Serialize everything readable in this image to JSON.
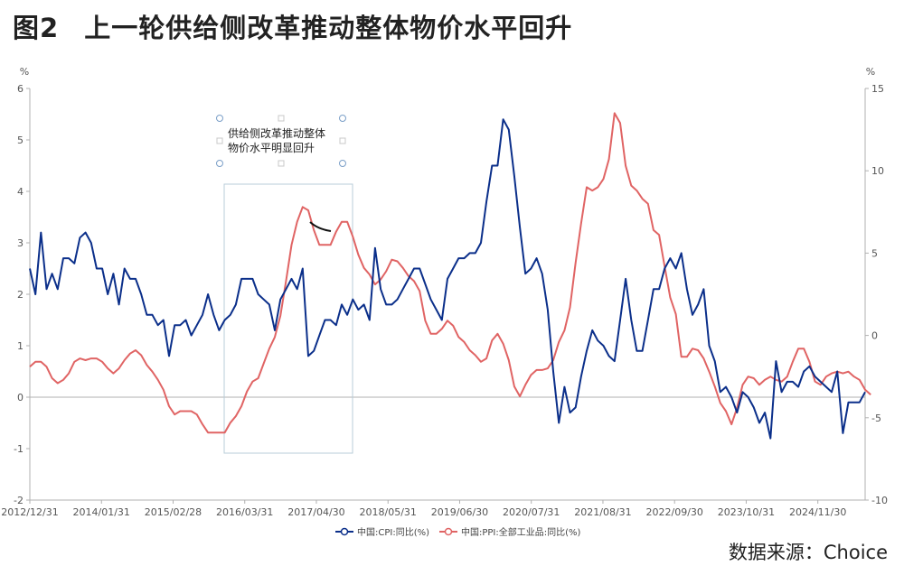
{
  "header": {
    "figure_no": "图2",
    "title": "上一轮供给侧改革推动整体物价水平回升"
  },
  "footer": {
    "source": "数据来源：Choice"
  },
  "chart_data": {
    "type": "line",
    "left_axis": {
      "unit": "%",
      "range": [
        -2,
        6
      ],
      "ticks": [
        -2,
        -1,
        0,
        1,
        2,
        3,
        4,
        5,
        6
      ]
    },
    "right_axis": {
      "unit": "%",
      "range": [
        -10,
        15
      ],
      "ticks": [
        -10,
        -5,
        0,
        5,
        10,
        15
      ]
    },
    "x_tick_labels": [
      "2012/12/31",
      "2014/01/31",
      "2015/02/28",
      "2016/03/31",
      "2017/04/30",
      "2018/05/31",
      "2019/06/30",
      "2020/07/31",
      "2021/08/31",
      "2022/09/30",
      "2023/10/31",
      "2024/11/30"
    ],
    "series": [
      {
        "name": "中国:CPI:同比(%)",
        "axis": "left",
        "color": "#0b2f8a",
        "values": [
          2.5,
          2.0,
          3.2,
          2.1,
          2.4,
          2.1,
          2.7,
          2.7,
          2.6,
          3.1,
          3.2,
          3.0,
          2.5,
          2.5,
          2.0,
          2.4,
          1.8,
          2.5,
          2.3,
          2.3,
          2.0,
          1.6,
          1.6,
          1.4,
          1.5,
          0.8,
          1.4,
          1.4,
          1.5,
          1.2,
          1.4,
          1.6,
          2.0,
          1.6,
          1.3,
          1.5,
          1.6,
          1.8,
          2.3,
          2.3,
          2.3,
          2.0,
          1.9,
          1.8,
          1.3,
          1.9,
          2.1,
          2.3,
          2.1,
          2.5,
          0.8,
          0.9,
          1.2,
          1.5,
          1.5,
          1.4,
          1.8,
          1.6,
          1.9,
          1.7,
          1.8,
          1.5,
          2.9,
          2.1,
          1.8,
          1.8,
          1.9,
          2.1,
          2.3,
          2.5,
          2.5,
          2.2,
          1.9,
          1.7,
          1.5,
          2.3,
          2.5,
          2.7,
          2.7,
          2.8,
          2.8,
          3.0,
          3.8,
          4.5,
          4.5,
          5.4,
          5.2,
          4.3,
          3.3,
          2.4,
          2.5,
          2.7,
          2.4,
          1.7,
          0.5,
          -0.5,
          0.2,
          -0.3,
          -0.2,
          0.4,
          0.9,
          1.3,
          1.1,
          1.0,
          0.8,
          0.7,
          1.5,
          2.3,
          1.5,
          0.9,
          0.9,
          1.5,
          2.1,
          2.1,
          2.5,
          2.7,
          2.5,
          2.8,
          2.1,
          1.6,
          1.8,
          2.1,
          1.0,
          0.7,
          0.1,
          0.2,
          0.0,
          -0.3,
          0.1,
          0.0,
          -0.2,
          -0.5,
          -0.3,
          -0.8,
          0.7,
          0.1,
          0.3,
          0.3,
          0.2,
          0.5,
          0.6,
          0.4,
          0.3,
          0.2,
          0.1,
          0.5,
          -0.7,
          -0.1,
          -0.1,
          -0.1,
          0.1
        ]
      },
      {
        "name": "中国:PPI:全部工业品:同比(%)",
        "axis": "right",
        "color": "#e06464",
        "values": [
          -1.9,
          -1.6,
          -1.6,
          -1.9,
          -2.6,
          -2.9,
          -2.7,
          -2.3,
          -1.6,
          -1.4,
          -1.5,
          -1.4,
          -1.4,
          -1.6,
          -2.0,
          -2.3,
          -2.0,
          -1.5,
          -1.1,
          -0.9,
          -1.2,
          -1.8,
          -2.2,
          -2.7,
          -3.3,
          -4.3,
          -4.8,
          -4.6,
          -4.6,
          -4.6,
          -4.8,
          -5.4,
          -5.9,
          -5.9,
          -5.9,
          -5.9,
          -5.3,
          -4.9,
          -4.3,
          -3.4,
          -2.8,
          -2.6,
          -1.7,
          -0.8,
          -0.1,
          1.2,
          3.3,
          5.5,
          6.9,
          7.8,
          7.6,
          6.4,
          5.5,
          5.5,
          5.5,
          6.3,
          6.9,
          6.9,
          6.0,
          4.9,
          4.1,
          3.7,
          3.1,
          3.4,
          3.9,
          4.6,
          4.5,
          4.1,
          3.6,
          3.3,
          2.7,
          0.9,
          0.1,
          0.1,
          0.4,
          0.9,
          0.6,
          -0.1,
          -0.4,
          -0.9,
          -1.2,
          -1.6,
          -1.4,
          -0.3,
          0.1,
          -0.5,
          -1.5,
          -3.1,
          -3.7,
          -3.0,
          -2.4,
          -2.1,
          -2.1,
          -2.0,
          -1.5,
          -0.4,
          0.3,
          1.7,
          4.4,
          6.8,
          9.0,
          8.8,
          9.0,
          9.5,
          10.7,
          13.5,
          12.9,
          10.3,
          9.1,
          8.8,
          8.3,
          8.0,
          6.4,
          6.1,
          4.2,
          2.3,
          1.3,
          -1.3,
          -1.3,
          -0.8,
          -0.9,
          -1.4,
          -2.2,
          -3.1,
          -4.1,
          -4.6,
          -5.4,
          -4.4,
          -3.0,
          -2.5,
          -2.6,
          -3.0,
          -2.7,
          -2.5,
          -2.7,
          -2.8,
          -2.5,
          -1.6,
          -0.8,
          -0.8,
          -1.6,
          -2.8,
          -3.0,
          -2.5,
          -2.3,
          -2.2,
          -2.3,
          -2.2,
          -2.5,
          -2.7,
          -3.3,
          -3.6
        ]
      }
    ],
    "annotation": {
      "text_line1": "供给侧改革推动整体",
      "text_line2": "物价水平明显回升"
    }
  }
}
